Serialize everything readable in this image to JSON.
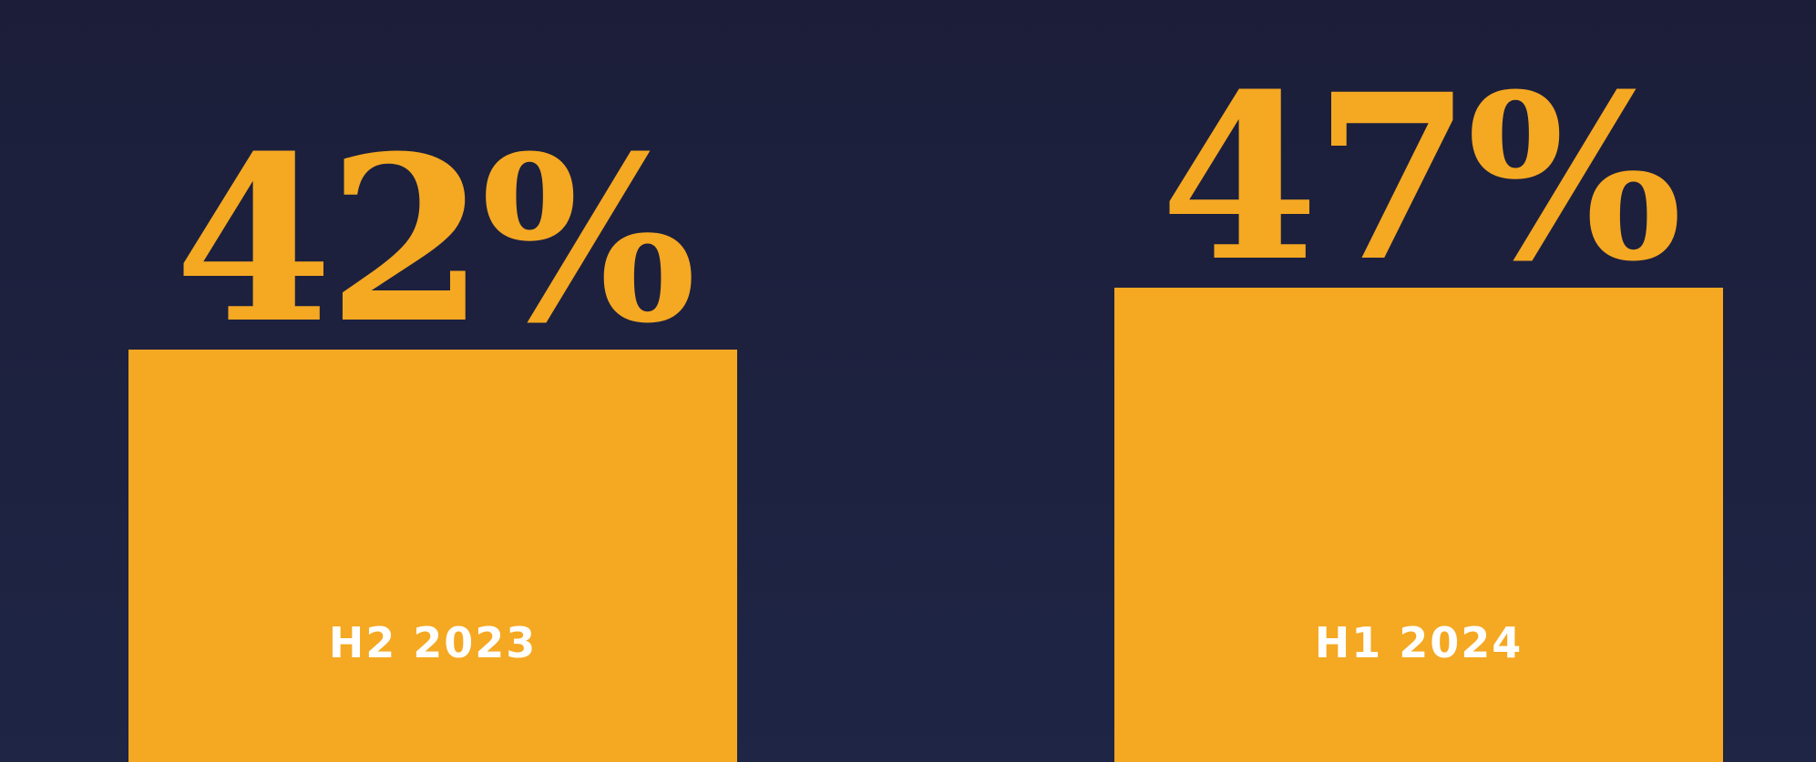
{
  "chart_data": {
    "type": "bar",
    "categories": [
      "H2 2023",
      "H1 2024"
    ],
    "values": [
      42,
      47
    ],
    "value_labels": [
      "42%",
      "47%"
    ],
    "unit": "%",
    "colors": {
      "background_top": "#1c1e39",
      "background_bottom": "#1e2545",
      "bar": "#f5a822",
      "value_text": "#f5a822",
      "category_text": "#ffffff"
    }
  }
}
